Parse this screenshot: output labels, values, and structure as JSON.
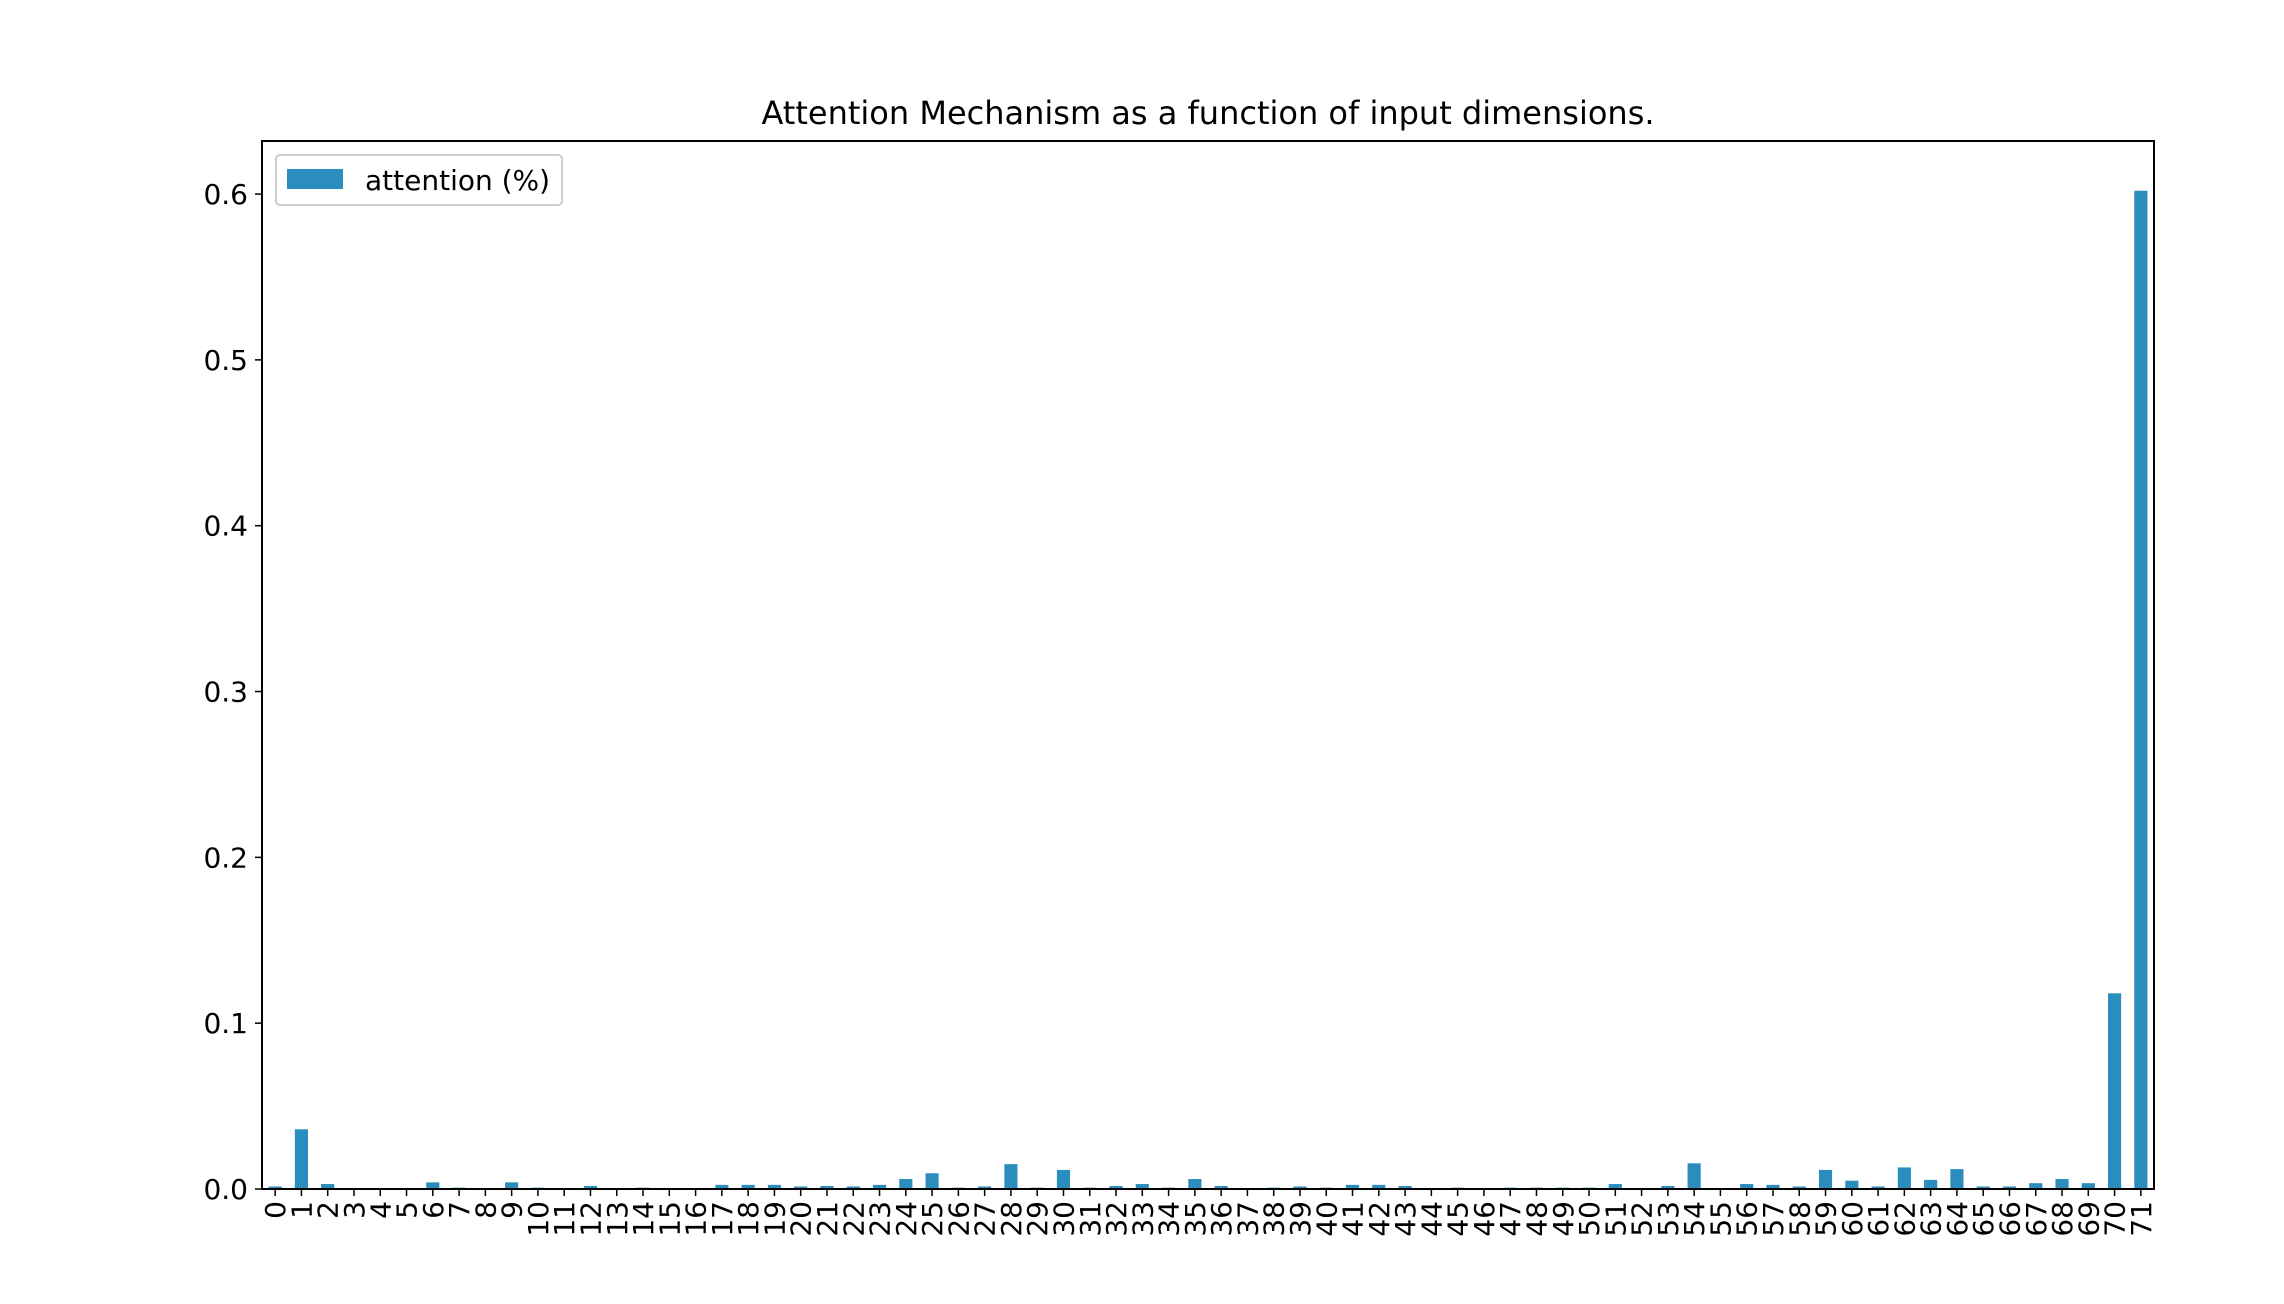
{
  "chart_data": {
    "type": "bar",
    "title": "Attention Mechanism as a function of input dimensions.",
    "xlabel": "",
    "ylabel": "",
    "ylim": [
      0,
      0.632
    ],
    "yticks": [
      "0.0",
      "0.1",
      "0.2",
      "0.3",
      "0.4",
      "0.5",
      "0.6"
    ],
    "grid": false,
    "legend_position": "top-left",
    "categories": [
      "0",
      "1",
      "2",
      "3",
      "4",
      "5",
      "6",
      "7",
      "8",
      "9",
      "10",
      "11",
      "12",
      "13",
      "14",
      "15",
      "16",
      "17",
      "18",
      "19",
      "20",
      "21",
      "22",
      "23",
      "24",
      "25",
      "26",
      "27",
      "28",
      "29",
      "30",
      "31",
      "32",
      "33",
      "34",
      "35",
      "36",
      "37",
      "38",
      "39",
      "40",
      "41",
      "42",
      "43",
      "44",
      "45",
      "46",
      "47",
      "48",
      "49",
      "50",
      "51",
      "52",
      "53",
      "54",
      "55",
      "56",
      "57",
      "58",
      "59",
      "60",
      "61",
      "62",
      "63",
      "64",
      "65",
      "66",
      "67",
      "68",
      "69",
      "70",
      "71"
    ],
    "series": [
      {
        "name": "attention (%)",
        "color": "#2b8cbe",
        "values": [
          0.0015,
          0.036,
          0.003,
          0.0003,
          0.0003,
          0.0003,
          0.004,
          0.0008,
          0.0003,
          0.004,
          0.0008,
          0.0003,
          0.0018,
          0.0003,
          0.0008,
          0.0003,
          0.0003,
          0.0025,
          0.0025,
          0.0025,
          0.0015,
          0.0018,
          0.0015,
          0.0025,
          0.006,
          0.0095,
          0.0008,
          0.0015,
          0.015,
          0.0008,
          0.0115,
          0.0008,
          0.0018,
          0.003,
          0.0008,
          0.006,
          0.0018,
          0.0003,
          0.0008,
          0.0015,
          0.0008,
          0.0025,
          0.0025,
          0.0018,
          0.0003,
          0.0008,
          0.0003,
          0.0008,
          0.0008,
          0.0008,
          0.0008,
          0.003,
          0.0003,
          0.0018,
          0.0155,
          0.0003,
          0.003,
          0.0025,
          0.0015,
          0.0115,
          0.005,
          0.0015,
          0.013,
          0.0055,
          0.012,
          0.0015,
          0.0015,
          0.0035,
          0.006,
          0.0035,
          0.118,
          0.602
        ]
      }
    ]
  }
}
